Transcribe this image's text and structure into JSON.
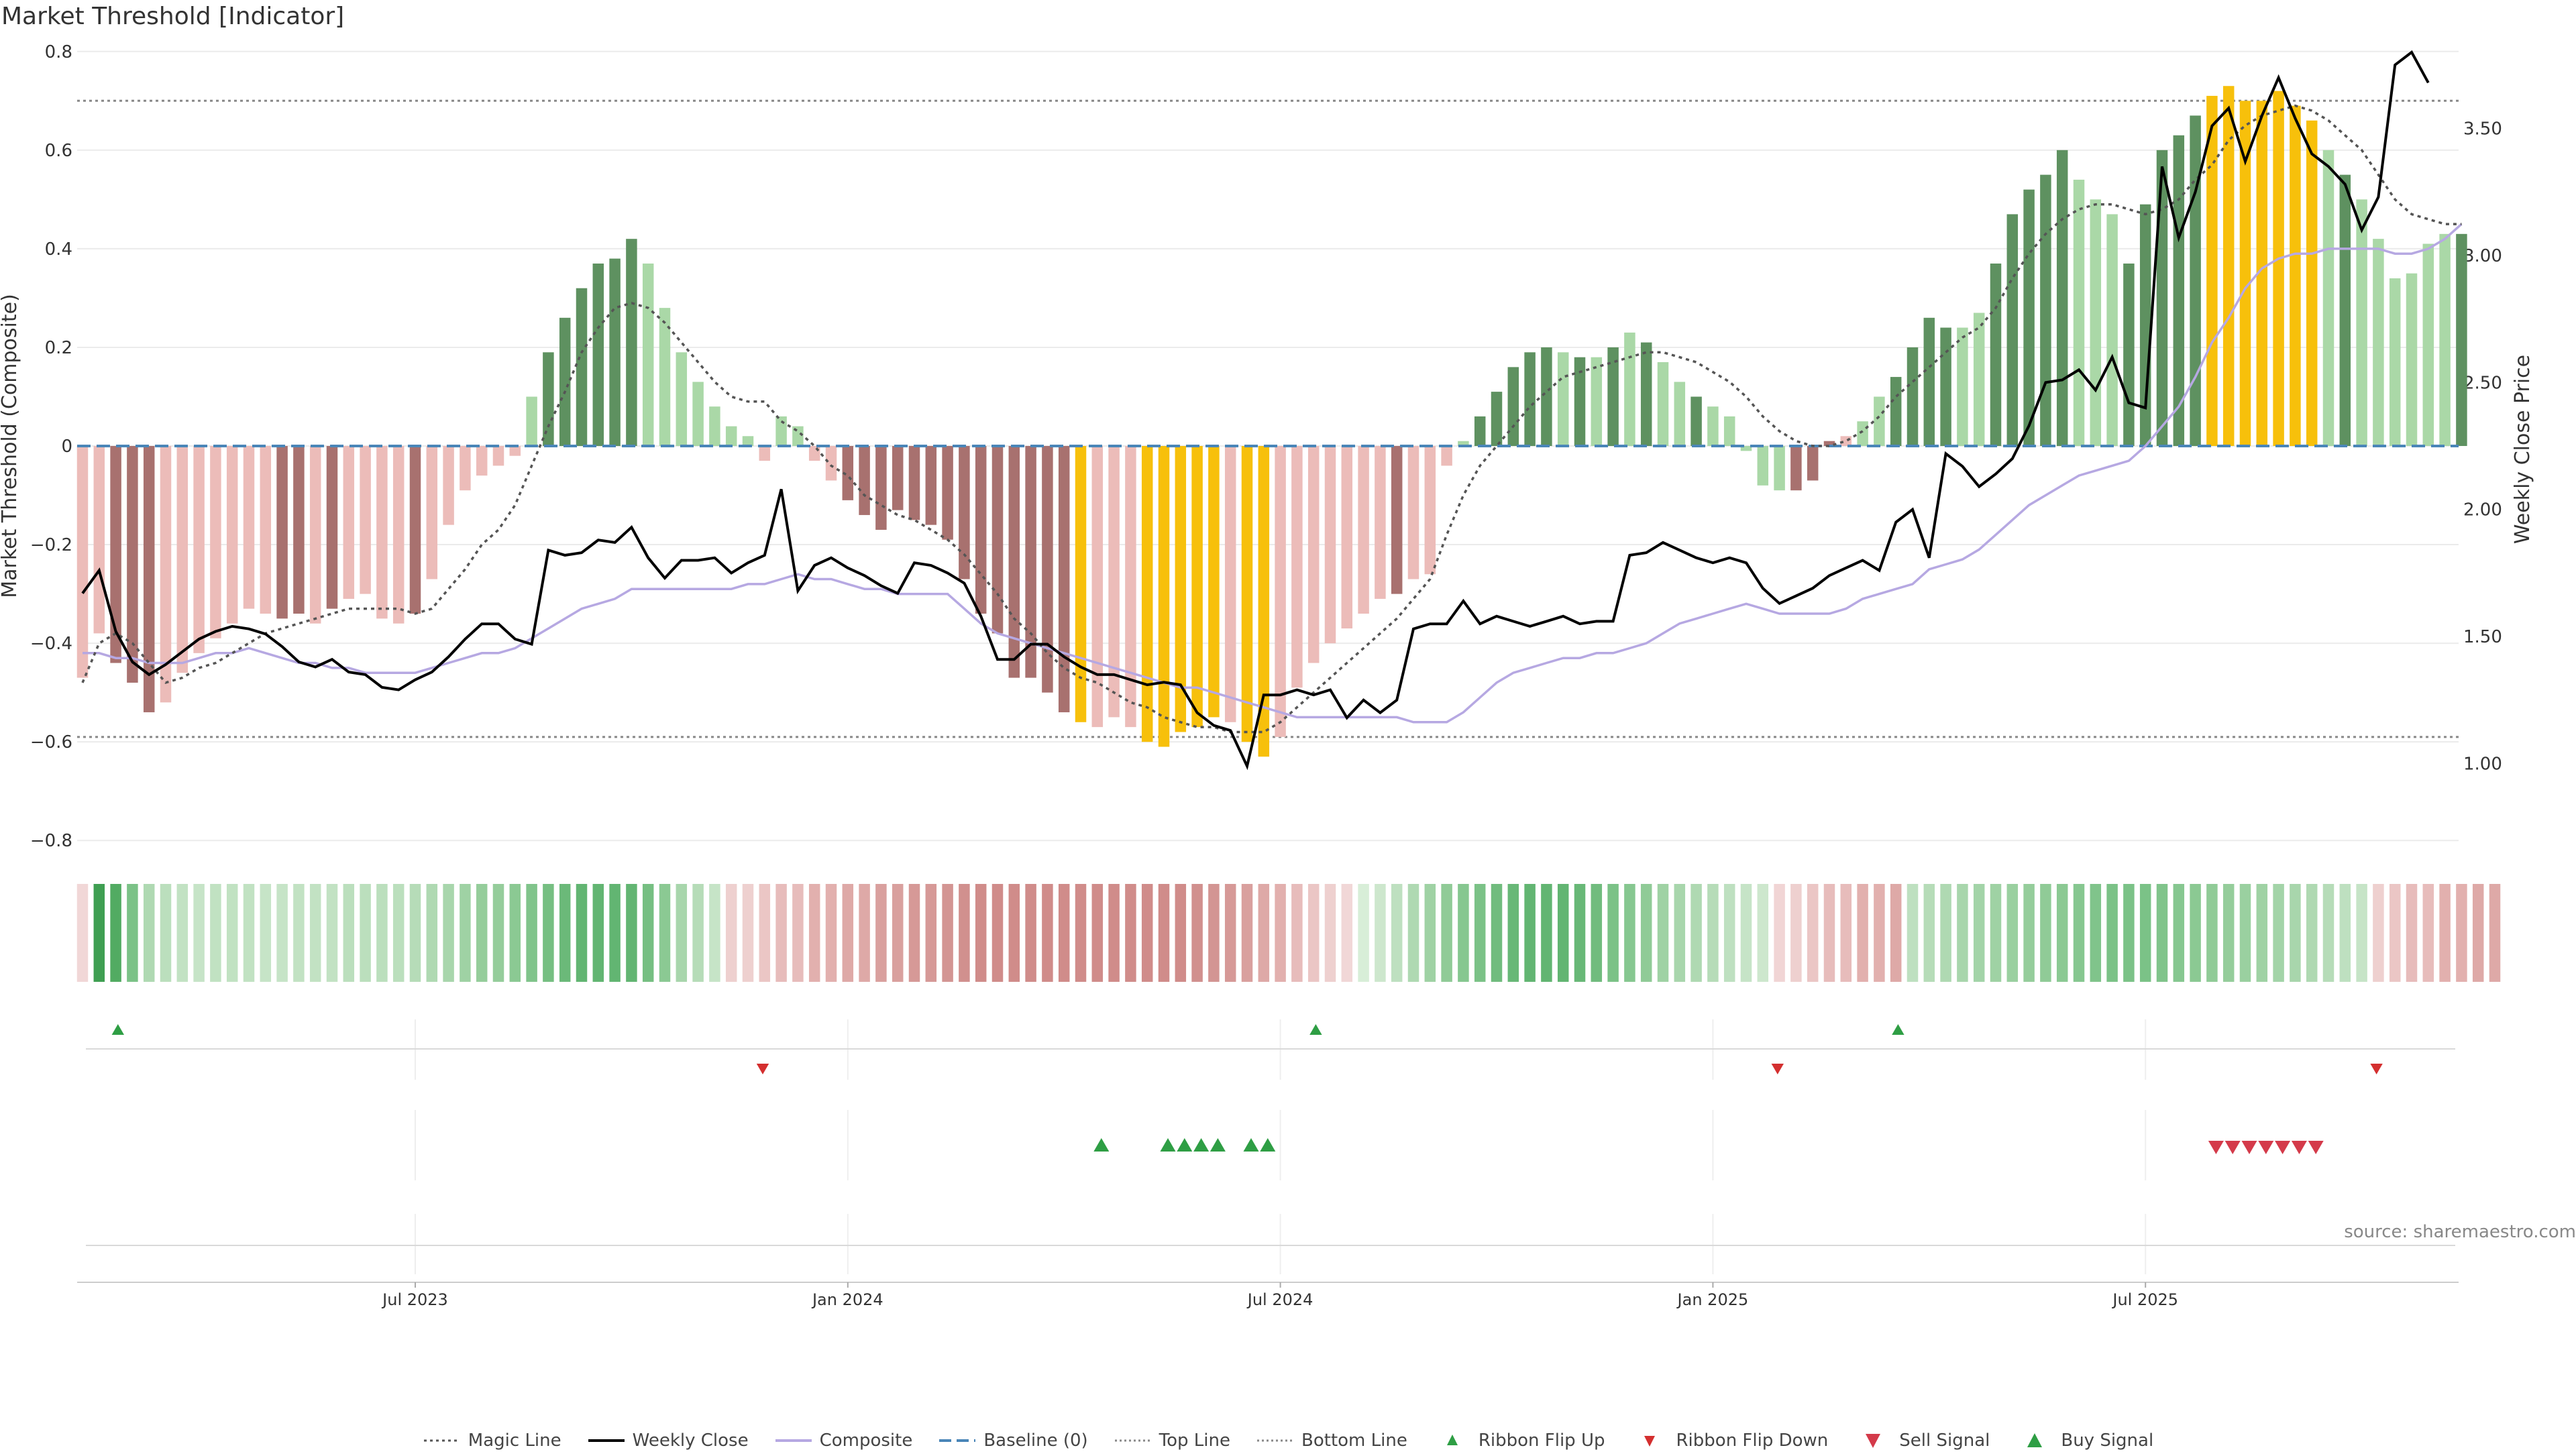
{
  "title": "Market Threshold [Indicator]",
  "source": "source: sharemaestro.com",
  "chart_data": {
    "type": "bar",
    "ylabel_left": "Market Threshold (Composite)",
    "ylabel_right": "Weekly Close Price",
    "ylim_left": [
      -0.85,
      0.85
    ],
    "ylim_right": [
      0.6,
      3.9
    ],
    "yticks_left": [
      "0.8",
      "0.6",
      "0.4",
      "0.2",
      "0",
      "−0.2",
      "−0.4",
      "−0.6",
      "−0.8"
    ],
    "yticks_left_values": [
      0.8,
      0.6,
      0.4,
      0.2,
      0,
      -0.2,
      -0.4,
      -0.6,
      -0.8
    ],
    "yticks_right": [
      "3.50",
      "3.00",
      "2.50",
      "2.00",
      "1.50",
      "1.00"
    ],
    "yticks_right_values": [
      3.5,
      3.0,
      2.5,
      2.0,
      1.5,
      1.0
    ],
    "xticks": [
      "Jul 2023",
      "Jan 2024",
      "Jul 2024",
      "Jan 2025",
      "Jul 2025"
    ],
    "xtick_weeks": [
      20,
      46,
      72,
      98,
      124
    ],
    "top_line": 0.7,
    "bottom_line": -0.59,
    "composite_bars": [
      -0.47,
      -0.38,
      -0.44,
      -0.48,
      -0.54,
      -0.52,
      -0.46,
      -0.42,
      -0.39,
      -0.36,
      -0.33,
      -0.34,
      -0.35,
      -0.34,
      -0.36,
      -0.33,
      -0.31,
      -0.3,
      -0.35,
      -0.36,
      -0.34,
      -0.27,
      -0.16,
      -0.09,
      -0.06,
      -0.04,
      -0.02,
      0.1,
      0.19,
      0.26,
      0.32,
      0.37,
      0.38,
      0.42,
      0.37,
      0.28,
      0.19,
      0.13,
      0.08,
      0.04,
      0.02,
      -0.03,
      0.06,
      0.04,
      -0.03,
      -0.07,
      -0.11,
      -0.14,
      -0.17,
      -0.13,
      -0.15,
      -0.16,
      -0.19,
      -0.27,
      -0.34,
      -0.38,
      -0.47,
      -0.47,
      -0.5,
      -0.54,
      -0.56,
      -0.57,
      -0.55,
      -0.57,
      -0.6,
      -0.61,
      -0.58,
      -0.57,
      -0.55,
      -0.56,
      -0.6,
      -0.63,
      -0.59,
      -0.49,
      -0.44,
      -0.4,
      -0.37,
      -0.34,
      -0.31,
      -0.3,
      -0.27,
      -0.26,
      -0.04,
      0.01,
      0.06,
      0.11,
      0.16,
      0.19,
      0.2,
      0.19,
      0.18,
      0.18,
      0.2,
      0.23,
      0.21,
      0.17,
      0.13,
      0.1,
      0.08,
      0.06,
      -0.01,
      -0.08,
      -0.09,
      -0.09,
      -0.07,
      0.01,
      0.02,
      0.05,
      0.1,
      0.14,
      0.2,
      0.26,
      0.24,
      0.24,
      0.27,
      0.37,
      0.47,
      0.52,
      0.55,
      0.6,
      0.54,
      0.5,
      0.47,
      0.37,
      0.49,
      0.6,
      0.63,
      0.67,
      0.71,
      0.73,
      0.7,
      0.7,
      0.72,
      0.69,
      0.66,
      0.6,
      0.55,
      0.5,
      0.42,
      0.34,
      0.35,
      0.41,
      0.43,
      0.43
    ],
    "magic_line": [
      -0.48,
      -0.4,
      -0.38,
      -0.4,
      -0.44,
      -0.48,
      -0.47,
      -0.45,
      -0.44,
      -0.42,
      -0.4,
      -0.38,
      -0.37,
      -0.36,
      -0.35,
      -0.34,
      -0.33,
      -0.33,
      -0.33,
      -0.33,
      -0.34,
      -0.33,
      -0.29,
      -0.25,
      -0.2,
      -0.17,
      -0.12,
      -0.04,
      0.04,
      0.11,
      0.19,
      0.24,
      0.28,
      0.29,
      0.28,
      0.25,
      0.21,
      0.17,
      0.13,
      0.1,
      0.09,
      0.09,
      0.05,
      0.03,
      0.0,
      -0.04,
      -0.06,
      -0.1,
      -0.12,
      -0.14,
      -0.15,
      -0.17,
      -0.19,
      -0.22,
      -0.26,
      -0.3,
      -0.35,
      -0.38,
      -0.42,
      -0.45,
      -0.47,
      -0.48,
      -0.5,
      -0.52,
      -0.53,
      -0.55,
      -0.56,
      -0.57,
      -0.57,
      -0.58,
      -0.58,
      -0.58,
      -0.56,
      -0.53,
      -0.5,
      -0.47,
      -0.44,
      -0.41,
      -0.38,
      -0.35,
      -0.31,
      -0.27,
      -0.18,
      -0.1,
      -0.04,
      0.0,
      0.04,
      0.08,
      0.11,
      0.14,
      0.15,
      0.16,
      0.17,
      0.18,
      0.19,
      0.19,
      0.18,
      0.17,
      0.15,
      0.13,
      0.1,
      0.06,
      0.03,
      0.01,
      0.0,
      0.0,
      0.01,
      0.03,
      0.06,
      0.1,
      0.13,
      0.16,
      0.19,
      0.22,
      0.24,
      0.28,
      0.34,
      0.39,
      0.43,
      0.46,
      0.48,
      0.49,
      0.49,
      0.48,
      0.47,
      0.48,
      0.5,
      0.54,
      0.57,
      0.62,
      0.65,
      0.67,
      0.68,
      0.69,
      0.68,
      0.66,
      0.63,
      0.6,
      0.55,
      0.5,
      0.47,
      0.46,
      0.45,
      0.45
    ],
    "composite_line": [
      -0.42,
      -0.42,
      -0.43,
      -0.43,
      -0.44,
      -0.44,
      -0.44,
      -0.43,
      -0.42,
      -0.42,
      -0.41,
      -0.42,
      -0.43,
      -0.44,
      -0.44,
      -0.45,
      -0.45,
      -0.46,
      -0.46,
      -0.46,
      -0.46,
      -0.45,
      -0.44,
      -0.43,
      -0.42,
      -0.42,
      -0.41,
      -0.39,
      -0.37,
      -0.35,
      -0.33,
      -0.32,
      -0.31,
      -0.29,
      -0.29,
      -0.29,
      -0.29,
      -0.29,
      -0.29,
      -0.29,
      -0.28,
      -0.28,
      -0.27,
      -0.26,
      -0.27,
      -0.27,
      -0.28,
      -0.29,
      -0.29,
      -0.3,
      -0.3,
      -0.3,
      -0.3,
      -0.33,
      -0.36,
      -0.38,
      -0.39,
      -0.4,
      -0.41,
      -0.42,
      -0.43,
      -0.44,
      -0.45,
      -0.46,
      -0.47,
      -0.48,
      -0.49,
      -0.49,
      -0.5,
      -0.51,
      -0.52,
      -0.53,
      -0.54,
      -0.55,
      -0.55,
      -0.55,
      -0.55,
      -0.55,
      -0.55,
      -0.55,
      -0.56,
      -0.56,
      -0.56,
      -0.54,
      -0.51,
      -0.48,
      -0.46,
      -0.45,
      -0.44,
      -0.43,
      -0.43,
      -0.42,
      -0.42,
      -0.41,
      -0.4,
      -0.38,
      -0.36,
      -0.35,
      -0.34,
      -0.33,
      -0.32,
      -0.33,
      -0.34,
      -0.34,
      -0.34,
      -0.34,
      -0.33,
      -0.31,
      -0.3,
      -0.29,
      -0.28,
      -0.25,
      -0.24,
      -0.23,
      -0.21,
      -0.18,
      -0.15,
      -0.12,
      -0.1,
      -0.08,
      -0.06,
      -0.05,
      -0.04,
      -0.03,
      0.0,
      0.04,
      0.08,
      0.14,
      0.21,
      0.26,
      0.32,
      0.36,
      0.38,
      0.39,
      0.39,
      0.4,
      0.4,
      0.4,
      0.4,
      0.39,
      0.39,
      0.4,
      0.42,
      0.45
    ],
    "weekly_close": [
      1.67,
      1.76,
      1.52,
      1.4,
      1.35,
      1.39,
      1.44,
      1.49,
      1.52,
      1.54,
      1.53,
      1.51,
      1.46,
      1.4,
      1.38,
      1.41,
      1.36,
      1.35,
      1.3,
      1.29,
      1.33,
      1.36,
      1.42,
      1.49,
      1.55,
      1.55,
      1.49,
      1.47,
      1.84,
      1.82,
      1.83,
      1.88,
      1.87,
      1.93,
      1.81,
      1.73,
      1.8,
      1.8,
      1.81,
      1.75,
      1.79,
      1.82,
      2.08,
      1.68,
      1.78,
      1.81,
      1.77,
      1.74,
      1.7,
      1.67,
      1.79,
      1.78,
      1.75,
      1.71,
      1.58,
      1.41,
      1.41,
      1.47,
      1.47,
      1.42,
      1.38,
      1.35,
      1.35,
      1.33,
      1.31,
      1.32,
      1.31,
      1.2,
      1.15,
      1.13,
      0.99,
      1.27,
      1.27,
      1.29,
      1.27,
      1.29,
      1.18,
      1.25,
      1.2,
      1.25,
      1.53,
      1.55,
      1.55,
      1.64,
      1.55,
      1.58,
      1.56,
      1.54,
      1.56,
      1.58,
      1.55,
      1.56,
      1.56,
      1.82,
      1.83,
      1.87,
      1.84,
      1.81,
      1.79,
      1.81,
      1.79,
      1.69,
      1.63,
      1.66,
      1.69,
      1.74,
      1.77,
      1.8,
      1.76,
      1.95,
      2.0,
      1.81,
      2.22,
      2.17,
      2.09,
      2.14,
      2.2,
      2.33,
      2.5,
      2.51,
      2.55,
      2.47,
      2.6,
      2.42,
      2.4,
      3.35,
      3.07,
      3.25,
      3.51,
      3.58,
      3.37,
      3.55,
      3.7,
      3.54,
      3.4,
      3.35,
      3.28,
      3.1,
      3.23,
      3.75,
      3.8,
      3.68
    ],
    "bar_colors": [
      "ec",
      "ec",
      "c7",
      "a8",
      "a8",
      "ec",
      "ec",
      "ec",
      "ec",
      "ec",
      "ec",
      "ec",
      "a8",
      "a8",
      "ec",
      "a8",
      "ec",
      "ec",
      "ec",
      "ec",
      "a8",
      "ec",
      "ec",
      "ec",
      "ec",
      "ec",
      "ec",
      "b0",
      "68",
      "68",
      "68",
      "68",
      "68",
      "68",
      "b0",
      "b0",
      "b0",
      "b0",
      "b0",
      "b0",
      "b0",
      "ec",
      "b0",
      "b0",
      "ec",
      "ec",
      "a8",
      "a8",
      "a8",
      "a8",
      "a8",
      "a8",
      "a8",
      "a8",
      "a8",
      "a8",
      "a8",
      "a8",
      "a8",
      "a8",
      "y",
      "ec",
      "ec",
      "ec",
      "y",
      "y",
      "y",
      "y",
      "y",
      "ec",
      "y",
      "y",
      "ec",
      "ec",
      "ec",
      "ec",
      "ec",
      "ec",
      "ec",
      "a8",
      "ec",
      "ec",
      "ec",
      "b0",
      "68",
      "68",
      "68",
      "68",
      "68",
      "b0",
      "68",
      "b0",
      "68",
      "b0",
      "68",
      "b0",
      "b0",
      "68",
      "b0",
      "b0",
      "b0",
      "b0",
      "b0",
      "a8",
      "a8",
      "a8",
      "ec",
      "b0",
      "b0",
      "68",
      "68",
      "68",
      "68",
      "b0",
      "b0",
      "68",
      "68",
      "68",
      "68",
      "68",
      "b0",
      "b0",
      "b0",
      "68",
      "68",
      "68",
      "68",
      "68",
      "y",
      "y",
      "y",
      "y",
      "y",
      "y",
      "y",
      "b0",
      "68",
      "b0",
      "b0",
      "b0",
      "b0",
      "b0",
      "b0",
      "68",
      "68",
      "b0"
    ],
    "ribbon_colors": [
      "ef2",
      "45",
      "5a",
      "7c",
      "a8",
      "b5",
      "bd",
      "c0",
      "c4",
      "c4",
      "c4",
      "c0",
      "c0",
      "bd",
      "bd",
      "bd",
      "b5",
      "b5",
      "b5",
      "b5",
      "b0",
      "a8",
      "a0",
      "98",
      "90",
      "90",
      "88",
      "80",
      "78",
      "70",
      "6a",
      "6a",
      "6a",
      "6a",
      "78",
      "88",
      "a0",
      "b0",
      "c0",
      "eb",
      "eb",
      "e6",
      "e0",
      "e0",
      "da",
      "da",
      "d5",
      "d5",
      "d0",
      "d0",
      "cc",
      "cc",
      "c9",
      "c6",
      "c3",
      "c3",
      "c3",
      "c3",
      "c3",
      "c3",
      "c3",
      "c3",
      "c3",
      "c3",
      "c3",
      "c3",
      "c3",
      "c6",
      "c9",
      "cc",
      "d0",
      "d5",
      "da",
      "e0",
      "e6",
      "eb",
      "ef2",
      "ef3",
      "c8",
      "b8",
      "a8",
      "98",
      "8c",
      "84",
      "7c",
      "74",
      "6e",
      "6a",
      "6a",
      "6a",
      "6e",
      "74",
      "7c",
      "84",
      "8c",
      "98",
      "a0",
      "a8",
      "b0",
      "b8",
      "c0",
      "c8",
      "ef",
      "eb",
      "e6",
      "e0",
      "e0",
      "da",
      "da",
      "d5",
      "b8",
      "b0",
      "a8",
      "a0",
      "9c",
      "98",
      "94",
      "90",
      "8c",
      "88",
      "84",
      "80",
      "7c",
      "7c",
      "7c",
      "80",
      "84",
      "88",
      "8c",
      "90",
      "94",
      "98",
      "9c",
      "a0",
      "a8",
      "b0",
      "b8",
      "c0",
      "eb",
      "e6",
      "e0",
      "e0",
      "da",
      "da",
      "d5",
      "d5"
    ],
    "ribbon_flip_up": [
      1,
      73,
      108
    ],
    "ribbon_flip_down": [
      40,
      101,
      137
    ],
    "buy_signal": [
      61,
      65,
      66,
      67,
      68,
      70,
      71
    ],
    "sell_signal": [
      128,
      129,
      130,
      131,
      132,
      133,
      134
    ]
  },
  "legend": {
    "magic_line": "Magic Line",
    "weekly_close": "Weekly Close",
    "composite": "Composite",
    "baseline": "Baseline (0)",
    "top_line": "Top Line",
    "bottom_line": "Bottom Line",
    "ribbon_flip_up": "Ribbon Flip Up",
    "ribbon_flip_down": "Ribbon Flip Down",
    "sell_signal": "Sell Signal",
    "buy_signal": "Buy Signal"
  },
  "colors": {
    "dark_green": "#5e9160",
    "light_green": "#aad8a7",
    "dark_red": "#a8716f",
    "light_red": "#ecbcb9",
    "yellow": "#f7c00b",
    "signal_green": "#2e9e44",
    "signal_red": "#d42f2f",
    "composite_line": "#b6a8e2",
    "weekly_close": "#000000"
  }
}
